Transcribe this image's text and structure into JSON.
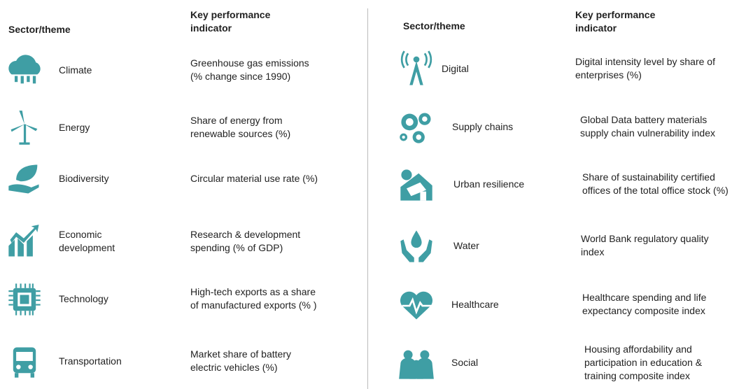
{
  "left": {
    "header": {
      "sector": "Sector/theme",
      "kpi": "Key performance indicator"
    },
    "rows": [
      {
        "sector": "Climate",
        "kpi": "Greenhouse gas emissions (% change since 1990)"
      },
      {
        "sector": "Energy",
        "kpi": "Share of energy from renewable sources (%)"
      },
      {
        "sector": "Biodiversity",
        "kpi": "Circular material use rate (%)"
      },
      {
        "sector": "Economic development",
        "kpi": "Research & development spending (% of GDP)"
      },
      {
        "sector": "Technology",
        "kpi": "High-tech exports as a share of manufactured exports (% )"
      },
      {
        "sector": "Transportation",
        "kpi": "Market share of battery electric vehicles (%)"
      }
    ]
  },
  "right": {
    "header": {
      "sector": "Sector/theme",
      "kpi": "Key performance indicator"
    },
    "rows": [
      {
        "sector": "Digital",
        "kpi": "Digital intensity level by share of enterprises (%)"
      },
      {
        "sector": "Supply chains",
        "kpi": "Global Data battery materials supply chain vulnerability index"
      },
      {
        "sector": "Urban resilience",
        "kpi": "Share of sustainability certified offices of the total office stock (%)"
      },
      {
        "sector": "Water",
        "kpi": "World Bank regulatory quality index"
      },
      {
        "sector": "Healthcare",
        "kpi": "Healthcare spending and life expectancy composite index"
      },
      {
        "sector": "Social",
        "kpi": "Housing affordability and participation in education & training composite index"
      }
    ]
  }
}
